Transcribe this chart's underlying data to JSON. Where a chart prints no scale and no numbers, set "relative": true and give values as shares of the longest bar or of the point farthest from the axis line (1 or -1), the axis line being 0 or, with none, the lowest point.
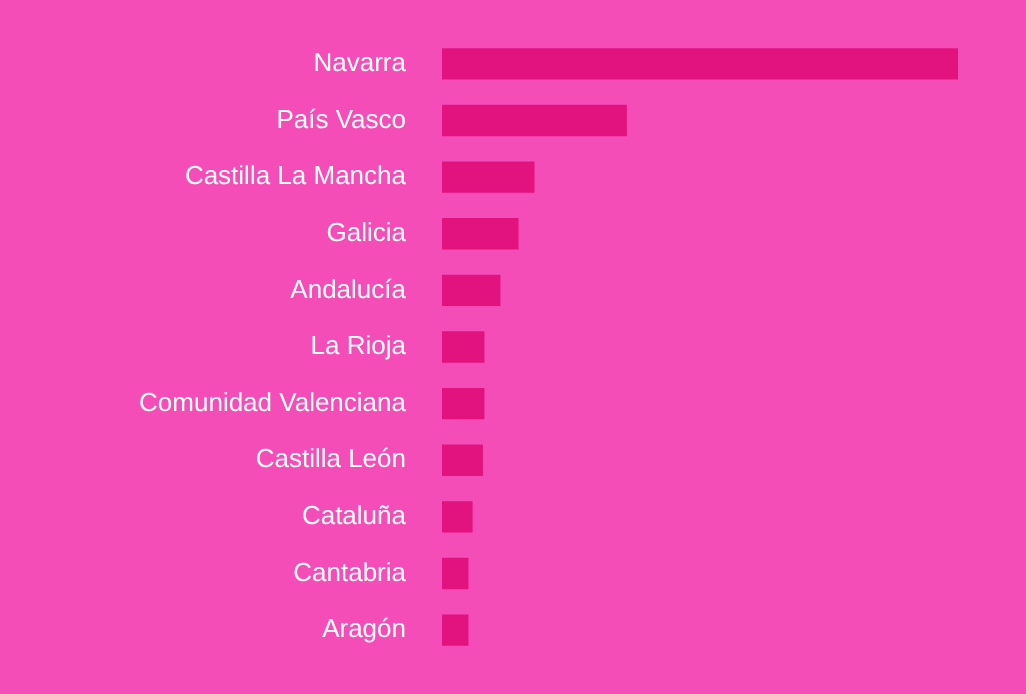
{
  "chart_data": {
    "type": "bar",
    "orientation": "horizontal",
    "relative": true,
    "categories": [
      "Navarra",
      "País Vasco",
      "Castilla La Mancha",
      "Galicia",
      "Andalucía",
      "La Rioja",
      "Comunidad Valenciana",
      "Castilla León",
      "Cataluña",
      "Cantabria",
      "Aragón"
    ],
    "values": [
      1,
      0.357,
      0.178,
      0.147,
      0.112,
      0.081,
      0.081,
      0.078,
      0.058,
      0.05,
      0.05
    ],
    "color": "#e2137f",
    "legend": false
  }
}
